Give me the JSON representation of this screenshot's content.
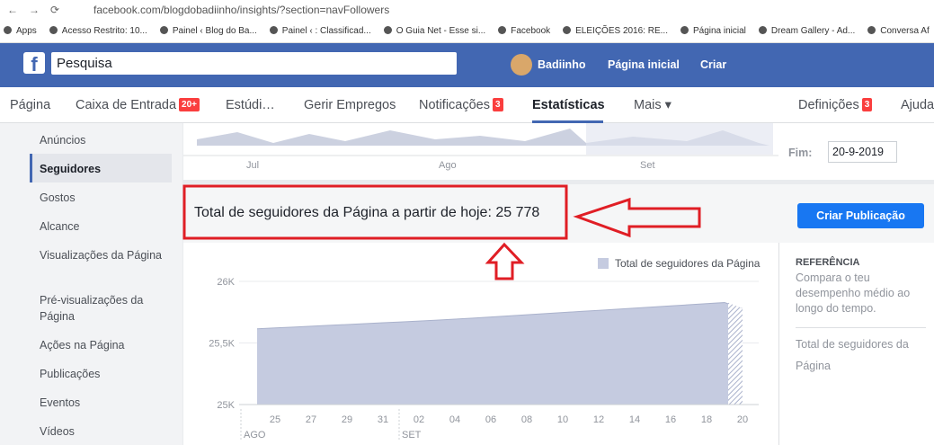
{
  "browser": {
    "url": "facebook.com/blogdobadiinho/insights/?section=navFollowers",
    "bookmarks": [
      "Apps",
      "Acesso Restrito: 10...",
      "Painel ‹ Blog do Ba...",
      "Painel ‹ : Classificad...",
      "O Guia Net - Esse si...",
      "Facebook",
      "ELEIÇÕES 2016: RE...",
      "Página inicial",
      "Dream Gallery - Ad...",
      "Conversa Af"
    ]
  },
  "topbar": {
    "search": "Pesquisa",
    "user": "Badiinho",
    "links": [
      "Página inicial",
      "Criar"
    ]
  },
  "nav": [
    {
      "label": "Página"
    },
    {
      "label": "Caixa de Entrada",
      "badge": "20+"
    },
    {
      "label": "Estúdi…"
    },
    {
      "label": "Gerir Empregos"
    },
    {
      "label": "Notificações",
      "badge": "3"
    },
    {
      "label": "Estatísticas"
    },
    {
      "label": "Mais ▾"
    },
    {
      "label": "Definições",
      "badge": "3"
    },
    {
      "label": "Ajuda"
    }
  ],
  "sidebar": [
    "Anúncios",
    "Seguidores",
    "Gostos",
    "Alcance",
    "Visualizações da Página",
    "Pré-visualizações da Página",
    "Ações na Página",
    "Publicações",
    "Eventos",
    "Vídeos"
  ],
  "overview": {
    "months": [
      "Jul",
      "Ago",
      "Set"
    ],
    "end_label": "Fim:",
    "end_date": "20-9-2019"
  },
  "headline": "Total de seguidores da Página a partir de hoje: 25 778",
  "button": "Criar Publicação",
  "chart_data": {
    "type": "area",
    "categories": [
      null,
      "25",
      null,
      "27",
      null,
      "29",
      null,
      "31",
      null,
      "02",
      null,
      "04",
      null,
      "06",
      null,
      "08",
      null,
      "10",
      null,
      "12",
      null,
      "14",
      null,
      "16",
      null,
      "18",
      null,
      "20"
    ],
    "month_labels": [
      "AGO",
      "SET"
    ],
    "series": [
      {
        "name": "Total de seguidores da Página",
        "color": "#c5cbe0",
        "values": [
          25615,
          25622,
          25629,
          25636,
          25643,
          25650,
          25657,
          25664,
          25671,
          25678,
          25685,
          25693,
          25702,
          25711,
          25720,
          25729,
          25738,
          25747,
          25756,
          25765,
          25774,
          25783,
          25792,
          25801,
          25810,
          25819,
          25828,
          25778
        ]
      }
    ],
    "ylim": [
      25000,
      26000
    ],
    "yticks": [
      {
        "value": 25000,
        "label": "25K"
      },
      {
        "value": 25500,
        "label": "25,5K"
      },
      {
        "value": 26000,
        "label": "26K"
      }
    ],
    "grid": true,
    "legend": "top-right"
  },
  "reference": {
    "title": "REFERÊNCIA",
    "text": "Compara o teu desempenho médio ao longo do tempo.",
    "item": "Total de seguidores da Página"
  }
}
